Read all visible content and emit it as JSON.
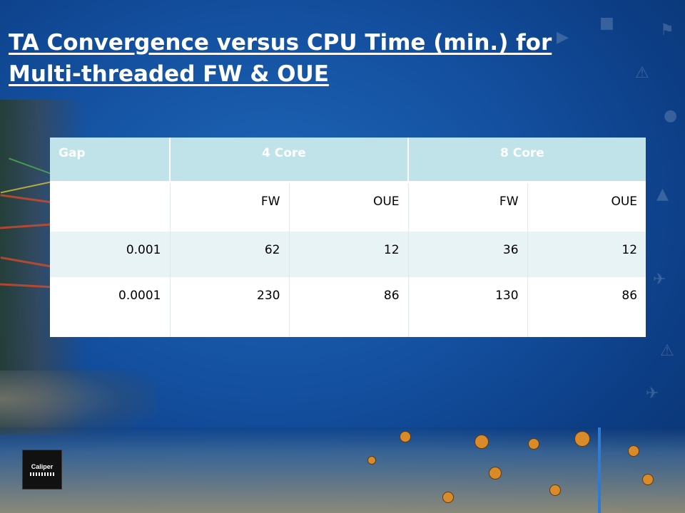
{
  "slide": {
    "title": "TA Convergence versus CPU Time (min.) for Multi-threaded FW & OUE",
    "logo_text": "Caliper"
  },
  "table": {
    "header": [
      "Gap",
      "4 Core",
      "8 Core"
    ],
    "subheader": [
      "",
      "FW",
      "OUE",
      "FW",
      "OUE"
    ],
    "rows": [
      [
        "0.001",
        "62",
        "12",
        "36",
        "12"
      ],
      [
        "0.0001",
        "230",
        "86",
        "130",
        "86"
      ]
    ]
  },
  "colors": {
    "background": "#134f9e",
    "header_fill": "#bfe3e8",
    "alt_row_fill": "#e8f3f5",
    "title_text": "#ffffff"
  }
}
